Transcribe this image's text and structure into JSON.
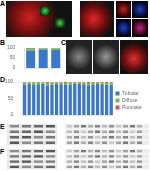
{
  "panels": [
    {
      "label": "A"
    },
    {
      "label": "B"
    },
    {
      "label": "C"
    },
    {
      "label": "D"
    },
    {
      "label": "E"
    },
    {
      "label": "F"
    }
  ],
  "chart_data": [
    {
      "type": "bar",
      "stacked": true,
      "tick_labels": "y",
      "categories": [
        null,
        null,
        null
      ],
      "series": [
        {
          "name": "Tubular",
          "color": "#3c78c8",
          "values": [
            88,
            92,
            90
          ]
        },
        {
          "name": "Diffuse",
          "color": "#6fbf4a",
          "values": [
            8,
            5,
            7
          ]
        },
        {
          "name": "Punctate",
          "color": "#d9534f",
          "values": [
            4,
            3,
            3
          ]
        }
      ],
      "ylim": [
        0,
        100
      ],
      "yticks": [
        0,
        50,
        100
      ]
    },
    {
      "type": "bar",
      "stacked": true,
      "tick_labels": "y",
      "legend": "right",
      "categories": [
        null,
        null,
        null,
        null,
        null,
        null,
        null,
        null,
        null,
        null,
        null,
        null,
        null,
        null,
        null,
        null,
        null,
        null,
        null,
        null
      ],
      "series": [
        {
          "name": "Tubular",
          "color": "#3c78c8",
          "values": [
            92,
            94,
            91,
            93,
            95,
            90,
            92,
            94,
            93,
            91,
            92,
            95,
            94,
            93,
            90,
            92,
            94,
            93,
            91,
            92
          ]
        },
        {
          "name": "Diffuse",
          "color": "#6fbf4a",
          "values": [
            6,
            4,
            7,
            5,
            4,
            7,
            6,
            4,
            5,
            6,
            6,
            3,
            4,
            5,
            7,
            6,
            4,
            5,
            6,
            6
          ]
        },
        {
          "name": "Punctate",
          "color": "#d9534f",
          "values": [
            2,
            2,
            2,
            2,
            1,
            3,
            2,
            2,
            2,
            3,
            2,
            2,
            2,
            2,
            3,
            2,
            2,
            2,
            3,
            2
          ]
        }
      ],
      "ylim": [
        0,
        100
      ],
      "yticks": [
        0,
        50,
        100
      ]
    }
  ]
}
